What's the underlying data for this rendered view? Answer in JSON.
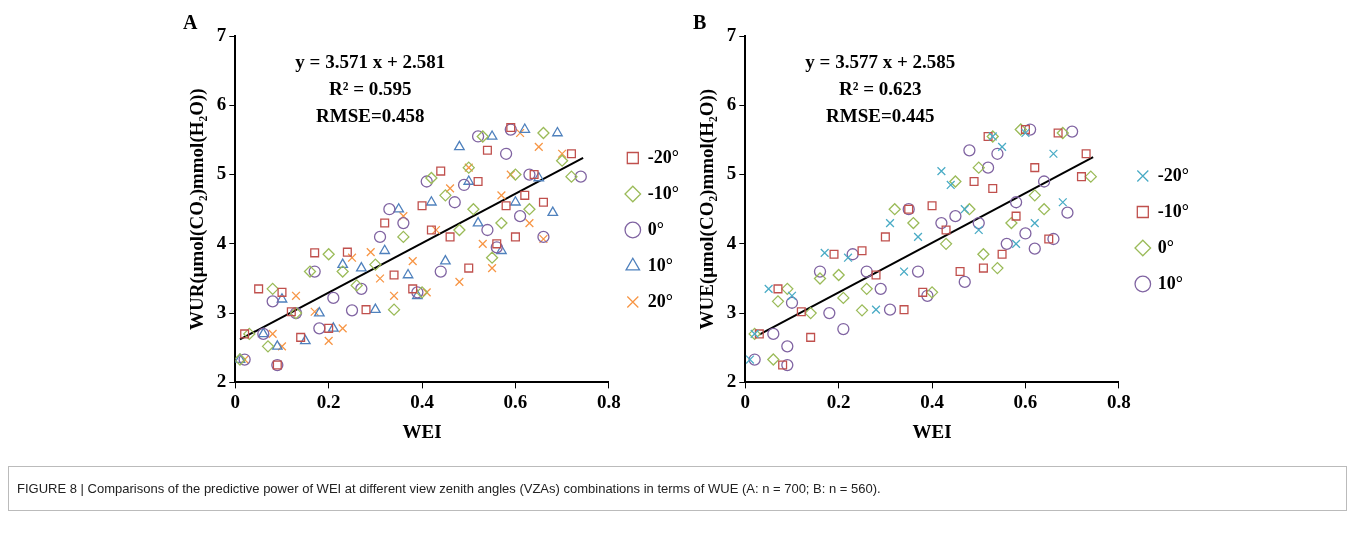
{
  "chart_data": [
    {
      "type": "scatter",
      "title": "A",
      "xlabel": "WEI",
      "ylabel": "WUR(μmol(CO₂)mmol(H₂O))",
      "xlim": [
        0,
        0.8
      ],
      "ylim": [
        2,
        7
      ],
      "xticks": [
        0,
        0.2,
        0.4,
        0.6,
        0.8
      ],
      "yticks": [
        2,
        3,
        4,
        5,
        6,
        7
      ],
      "legend": "right",
      "annotations": [
        "y = 3.571 x + 2.581",
        "R² = 0.595",
        "RMSE=0.458",
        "FIGURE 8 | Comparisons of the predictive power of WEI at different view zenith angles (VZAs) combinations in terms of WUE (A: n = 700; B: n = 560)."
      ],
      "series": [
        {
          "name": "-20°",
          "color": "#c0504d",
          "marker": "square",
          "x": [
            0.02,
            0.05,
            0.09,
            0.1,
            0.12,
            0.14,
            0.17,
            0.2,
            0.24,
            0.28,
            0.32,
            0.34,
            0.38,
            0.4,
            0.42,
            0.44,
            0.46,
            0.5,
            0.52,
            0.54,
            0.56,
            0.58,
            0.59,
            0.6,
            0.62,
            0.64,
            0.66,
            0.72
          ],
          "values": [
            2.7,
            3.35,
            2.25,
            3.3,
            3.02,
            2.65,
            3.87,
            2.78,
            3.88,
            3.05,
            4.3,
            3.55,
            3.35,
            4.55,
            4.2,
            5.05,
            4.1,
            3.65,
            4.9,
            5.35,
            4.0,
            4.55,
            5.68,
            4.1,
            4.7,
            5.0,
            4.6,
            5.3
          ]
        },
        {
          "name": "-10°",
          "color": "#9bbb59",
          "marker": "diamond",
          "x": [
            0.01,
            0.03,
            0.07,
            0.08,
            0.13,
            0.16,
            0.2,
            0.23,
            0.26,
            0.3,
            0.34,
            0.36,
            0.4,
            0.42,
            0.45,
            0.48,
            0.5,
            0.51,
            0.53,
            0.55,
            0.57,
            0.6,
            0.63,
            0.66,
            0.7,
            0.72
          ],
          "values": [
            2.33,
            2.7,
            2.52,
            3.35,
            3.0,
            3.6,
            3.85,
            3.6,
            3.4,
            3.7,
            3.05,
            4.1,
            3.3,
            4.95,
            4.7,
            4.2,
            5.1,
            4.5,
            5.55,
            3.8,
            4.3,
            5.0,
            4.5,
            5.6,
            5.2,
            4.97
          ]
        },
        {
          "name": "0°",
          "color": "#8064a2",
          "marker": "circle",
          "x": [
            0.02,
            0.06,
            0.08,
            0.09,
            0.13,
            0.17,
            0.18,
            0.21,
            0.25,
            0.27,
            0.31,
            0.33,
            0.36,
            0.39,
            0.41,
            0.44,
            0.47,
            0.49,
            0.52,
            0.54,
            0.56,
            0.58,
            0.59,
            0.61,
            0.63,
            0.66,
            0.74
          ],
          "values": [
            2.33,
            2.7,
            3.17,
            2.25,
            3.0,
            3.6,
            2.78,
            3.22,
            3.04,
            3.35,
            4.1,
            4.5,
            4.3,
            3.3,
            4.9,
            3.6,
            4.6,
            4.85,
            5.55,
            4.2,
            3.95,
            5.3,
            5.65,
            4.4,
            5.0,
            4.1,
            4.97
          ]
        },
        {
          "name": "10°",
          "color": "#4f81bd",
          "marker": "triangle",
          "x": [
            0.01,
            0.06,
            0.09,
            0.1,
            0.15,
            0.18,
            0.21,
            0.23,
            0.27,
            0.3,
            0.32,
            0.35,
            0.37,
            0.39,
            0.42,
            0.45,
            0.48,
            0.5,
            0.52,
            0.55,
            0.57,
            0.6,
            0.62,
            0.65,
            0.68,
            0.69
          ],
          "values": [
            2.33,
            2.7,
            2.52,
            3.2,
            2.6,
            3.0,
            2.78,
            3.7,
            3.65,
            3.05,
            3.9,
            4.5,
            3.55,
            3.25,
            4.6,
            3.75,
            5.4,
            4.9,
            4.3,
            5.55,
            3.9,
            4.6,
            5.65,
            4.95,
            4.45,
            5.6
          ]
        },
        {
          "name": "20°",
          "color": "#f79646",
          "marker": "cross",
          "x": [
            0.02,
            0.08,
            0.1,
            0.13,
            0.17,
            0.2,
            0.23,
            0.25,
            0.29,
            0.31,
            0.34,
            0.36,
            0.38,
            0.41,
            0.43,
            0.46,
            0.48,
            0.5,
            0.53,
            0.55,
            0.57,
            0.59,
            0.61,
            0.63,
            0.65,
            0.66,
            0.7
          ],
          "values": [
            2.33,
            2.7,
            2.52,
            3.25,
            3.02,
            2.6,
            2.78,
            3.8,
            3.88,
            3.5,
            3.25,
            4.4,
            3.75,
            3.3,
            4.2,
            4.8,
            3.45,
            5.1,
            4.0,
            3.65,
            4.7,
            5.0,
            5.6,
            4.3,
            5.4,
            4.07,
            5.3
          ]
        },
        {
          "type": "line",
          "color": "#000000",
          "marker": "none",
          "x": [
            0.01,
            0.745
          ],
          "values": [
            2.62,
            5.24
          ]
        }
      ]
    },
    {
      "type": "scatter",
      "title": "B",
      "xlabel": "WEI",
      "ylabel": "WUE(μmol(CO₂)mmol(H₂O))",
      "xlim": [
        0,
        0.8
      ],
      "ylim": [
        2,
        7
      ],
      "xticks": [
        0,
        0.2,
        0.4,
        0.6,
        0.8
      ],
      "yticks": [
        2,
        3,
        4,
        5,
        6,
        7
      ],
      "legend": "right",
      "annotations": [
        "y = 3.577 x + 2.585",
        "R² = 0.623",
        "RMSE=0.445"
      ],
      "series": [
        {
          "name": "-20°",
          "color": "#4bacc6",
          "marker": "cross",
          "x": [
            0.01,
            0.02,
            0.05,
            0.1,
            0.17,
            0.22,
            0.28,
            0.31,
            0.34,
            0.37,
            0.42,
            0.44,
            0.47,
            0.5,
            0.53,
            0.55,
            0.58,
            0.6,
            0.62,
            0.66,
            0.68
          ],
          "values": [
            2.33,
            2.7,
            3.35,
            3.25,
            3.87,
            3.8,
            3.05,
            4.3,
            3.6,
            4.1,
            5.05,
            4.85,
            4.5,
            4.2,
            5.55,
            5.4,
            4.0,
            5.6,
            4.3,
            5.3,
            4.6
          ]
        },
        {
          "name": "-10°",
          "color": "#c0504d",
          "marker": "square",
          "x": [
            0.03,
            0.07,
            0.08,
            0.12,
            0.14,
            0.19,
            0.25,
            0.28,
            0.3,
            0.34,
            0.35,
            0.38,
            0.4,
            0.43,
            0.46,
            0.49,
            0.51,
            0.52,
            0.53,
            0.55,
            0.58,
            0.6,
            0.62,
            0.65,
            0.67,
            0.72,
            0.73
          ],
          "values": [
            2.7,
            3.35,
            2.25,
            3.02,
            2.65,
            3.85,
            3.9,
            3.55,
            4.1,
            3.05,
            4.5,
            3.3,
            4.55,
            4.2,
            3.6,
            4.9,
            3.65,
            5.55,
            4.8,
            3.85,
            4.4,
            5.65,
            5.1,
            4.07,
            5.6,
            4.97,
            5.3
          ]
        },
        {
          "name": "0°",
          "color": "#9bbb59",
          "marker": "diamond",
          "x": [
            0.02,
            0.06,
            0.07,
            0.09,
            0.14,
            0.16,
            0.2,
            0.21,
            0.25,
            0.26,
            0.32,
            0.36,
            0.4,
            0.43,
            0.45,
            0.48,
            0.5,
            0.51,
            0.53,
            0.54,
            0.57,
            0.59,
            0.62,
            0.64,
            0.68,
            0.74
          ],
          "values": [
            2.7,
            2.33,
            3.17,
            3.35,
            3.0,
            3.5,
            3.55,
            3.22,
            3.04,
            3.35,
            4.5,
            4.3,
            3.3,
            4.0,
            4.9,
            4.5,
            5.1,
            3.85,
            5.55,
            3.65,
            4.3,
            5.65,
            4.7,
            4.5,
            5.6,
            4.97
          ]
        },
        {
          "name": "10°",
          "color": "#8064a2",
          "marker": "circle",
          "x": [
            0.02,
            0.06,
            0.09,
            0.09,
            0.1,
            0.16,
            0.18,
            0.21,
            0.23,
            0.26,
            0.29,
            0.31,
            0.35,
            0.37,
            0.39,
            0.42,
            0.45,
            0.47,
            0.48,
            0.5,
            0.52,
            0.54,
            0.56,
            0.58,
            0.6,
            0.61,
            0.62,
            0.64,
            0.66,
            0.69,
            0.7
          ],
          "values": [
            2.33,
            2.7,
            2.25,
            2.52,
            3.15,
            3.6,
            3.0,
            2.77,
            3.85,
            3.6,
            3.35,
            3.05,
            4.5,
            3.6,
            3.25,
            4.3,
            4.4,
            3.45,
            5.35,
            4.3,
            5.1,
            5.3,
            4.0,
            4.6,
            4.15,
            5.65,
            3.93,
            4.9,
            4.07,
            4.45,
            5.62
          ]
        },
        {
          "type": "line",
          "color": "#000000",
          "marker": "none",
          "x": [
            0.03,
            0.745
          ],
          "values": [
            2.69,
            5.25
          ]
        }
      ]
    }
  ]
}
